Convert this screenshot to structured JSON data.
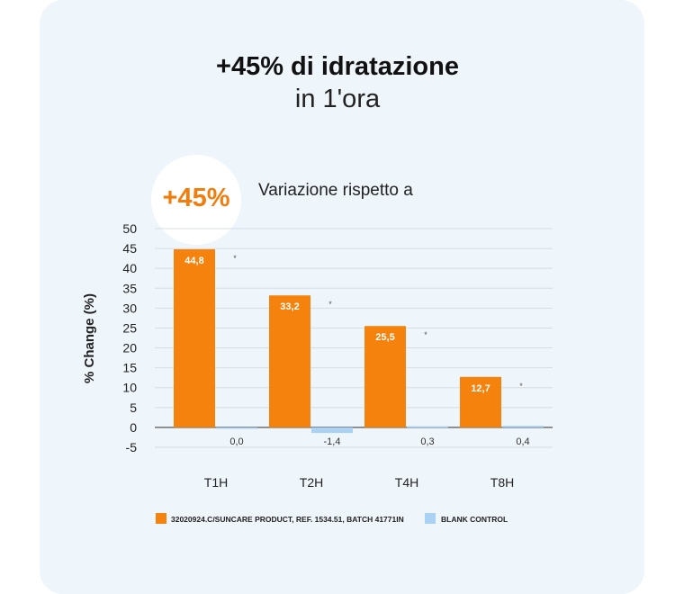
{
  "header": {
    "title": "+45% di idratazione",
    "subtitle": "in 1'ora"
  },
  "badge": {
    "text": "+45%"
  },
  "chart_data": {
    "type": "bar",
    "title": "Variazione rispetto a",
    "ylabel": "% Change (%)",
    "xlabel": "",
    "categories": [
      "T1H",
      "T2H",
      "T4H",
      "T8H"
    ],
    "yticks": [
      50,
      45,
      40,
      35,
      30,
      25,
      20,
      15,
      10,
      5,
      0,
      -5
    ],
    "ylim": [
      -5,
      50
    ],
    "grid": true,
    "legend_position": "bottom",
    "series": [
      {
        "name": "32020924.C/SUNCARE PRODUCT, REF. 1534.51, BATCH 41771IN",
        "color": "#f5820d",
        "values": [
          44.8,
          33.2,
          25.5,
          12.7
        ],
        "labels": [
          "44,8",
          "33,2",
          "25,5",
          "12,7"
        ],
        "significance": [
          "*",
          "*",
          "*",
          "*"
        ]
      },
      {
        "name": "BLANK CONTROL",
        "color": "#a9d2f5",
        "values": [
          0.0,
          -1.4,
          0.3,
          0.4
        ],
        "labels": [
          "0,0",
          "-1,4",
          "0,3",
          "0,4"
        ]
      }
    ]
  }
}
